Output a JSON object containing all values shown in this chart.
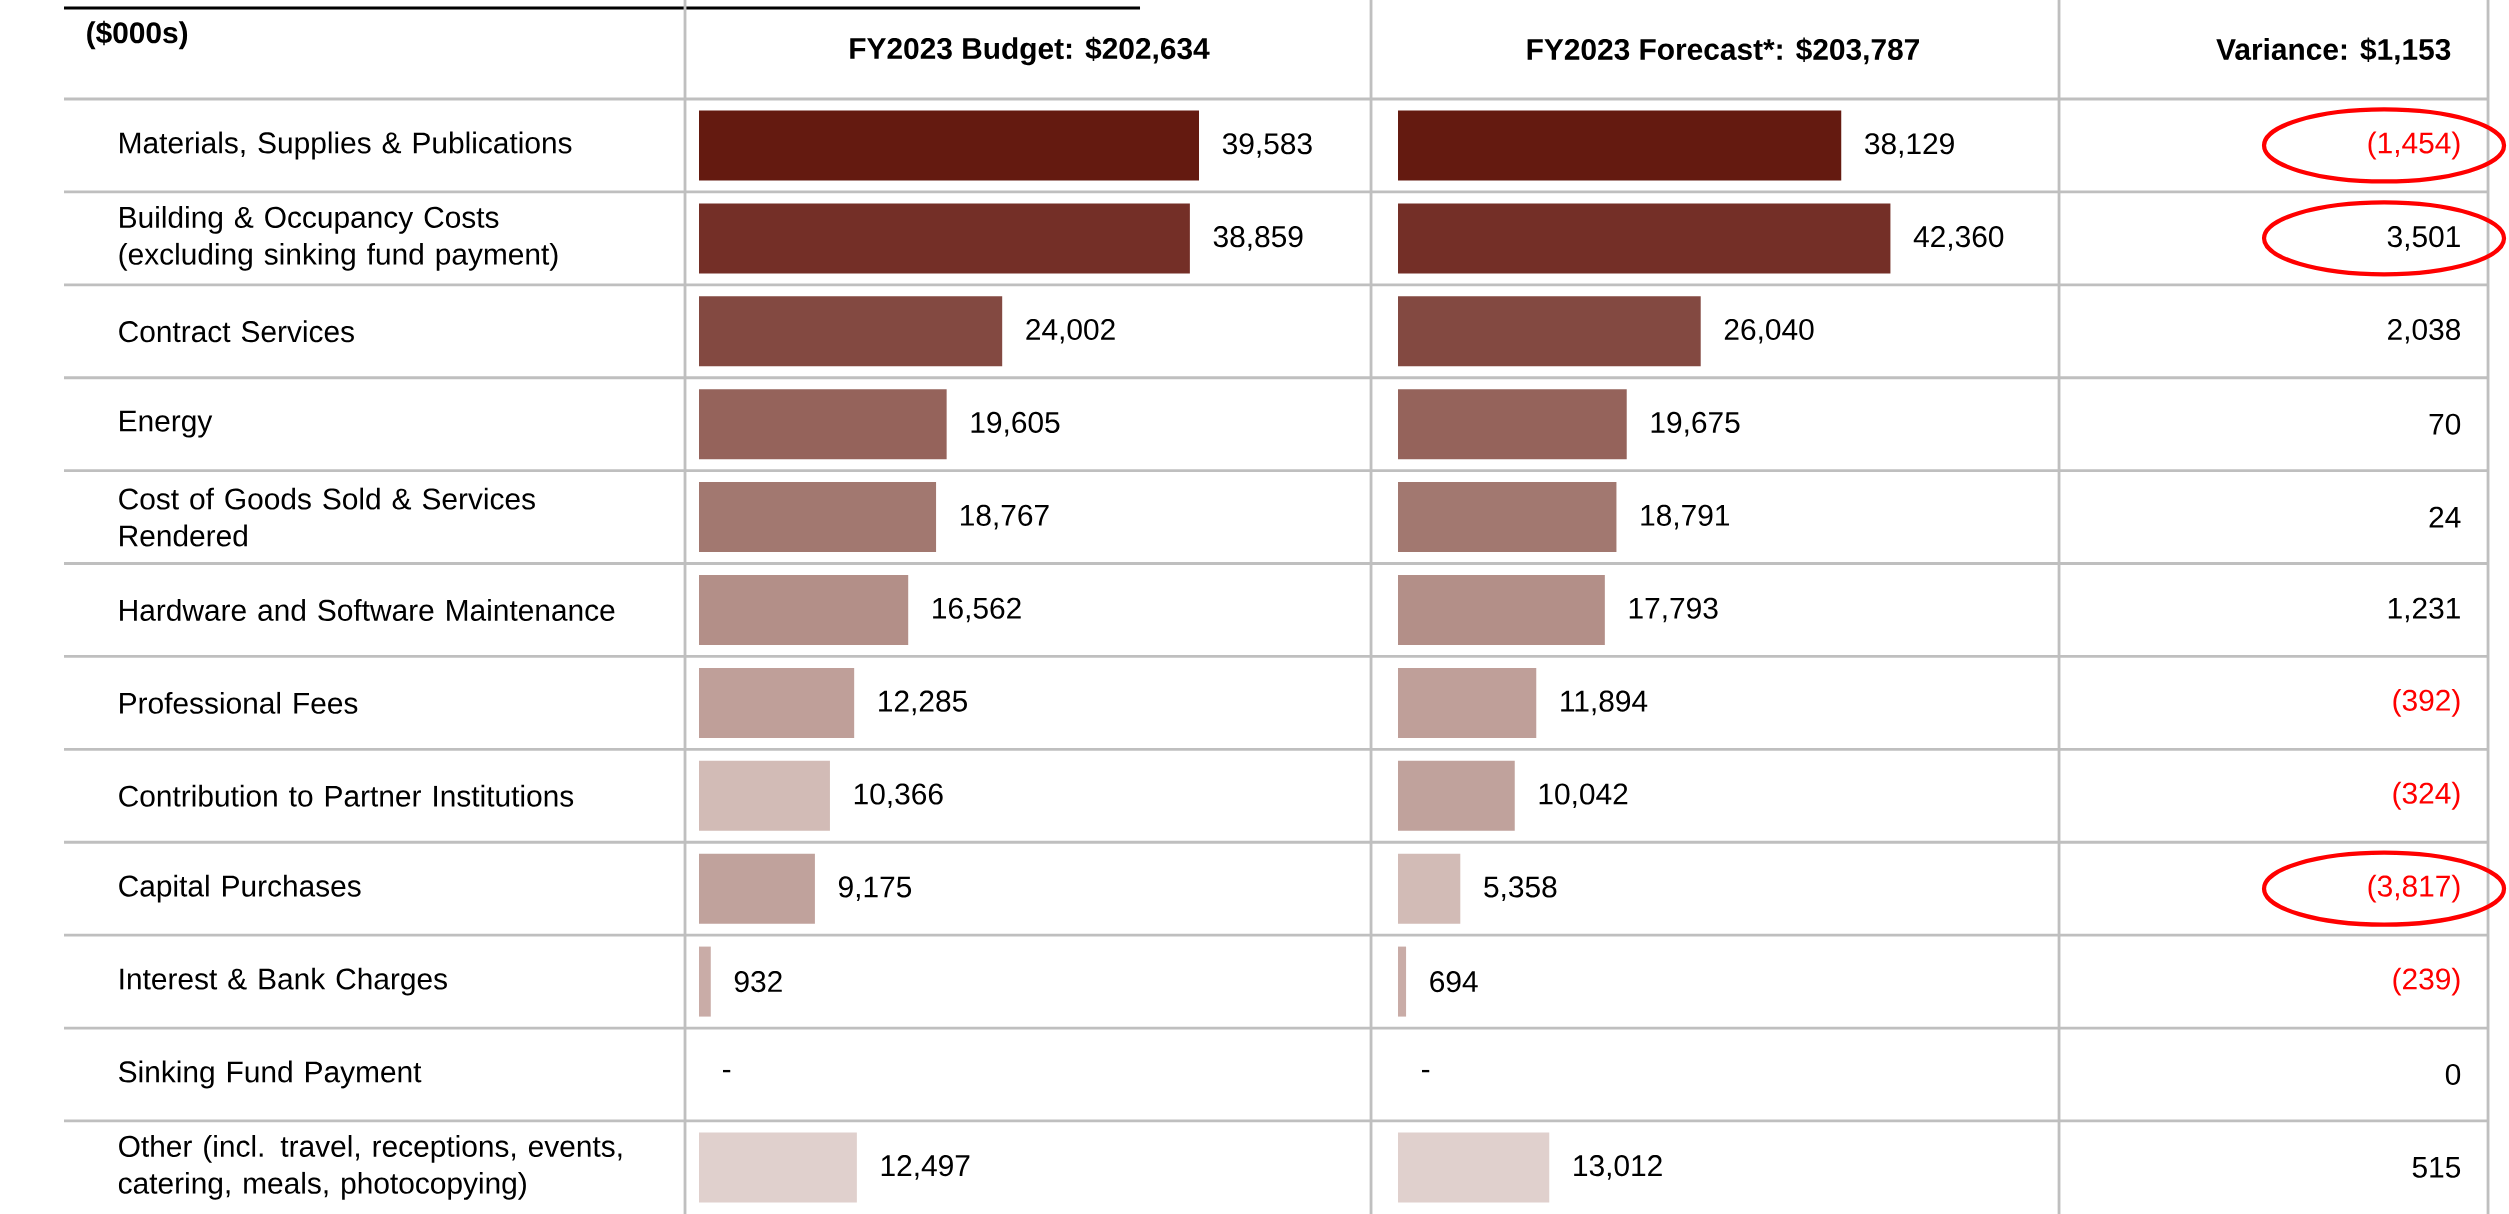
{
  "chart_data": [
    {
      "type": "bar",
      "orientation": "horizontal",
      "title": "FY2023 Budget: $202,634",
      "ylabel": "($000s)",
      "categories": [
        "Materials, Supplies & Publications",
        "Building & Occupancy Costs (excluding sinking fund payment)",
        "Contract Services",
        "Energy",
        "Cost of Goods Sold & Services Rendered",
        "Hardware and Software Maintenance",
        "Professional Fees",
        "Contribution to Partner Institutions",
        "Capital Purchases",
        "Interest & Bank Charges",
        "Sinking Fund Payment",
        "Other (incl. travel, receptions, events, catering, meals, photocopying)"
      ],
      "values": [
        39583,
        38859,
        24002,
        19605,
        18767,
        16562,
        12285,
        10366,
        9175,
        932,
        0,
        12497
      ],
      "value_labels": [
        "39,583",
        "38,859",
        "24,002",
        "19,605",
        "18,767",
        "16,562",
        "12,285",
        "10,366",
        "9,175",
        "932",
        "-",
        "12,497"
      ],
      "colors": [
        "#641a10",
        "#742f27",
        "#834941",
        "#95635b",
        "#a27870",
        "#b38f88",
        "#bf9f99",
        "#d2bbb6",
        "#c0a29c",
        "#c9aca7",
        "#c9aca7",
        "#e0d0cd"
      ]
    },
    {
      "type": "bar",
      "orientation": "horizontal",
      "title": "FY2023 Forecast*: $203,787",
      "categories": [
        null,
        null,
        null,
        null,
        null,
        null,
        null,
        null,
        null,
        null,
        null,
        null
      ],
      "values": [
        38129,
        42360,
        26040,
        19675,
        18791,
        17793,
        11894,
        10042,
        5358,
        694,
        0,
        13012
      ],
      "value_labels": [
        "38,129",
        "42,360",
        "26,040",
        "19,675",
        "18,791",
        "17,793",
        "11,894",
        "10,042",
        "5,358",
        "694",
        "-",
        "13,012"
      ],
      "colors": [
        "#641a10",
        "#742f27",
        "#834941",
        "#95635b",
        "#a27870",
        "#b38f88",
        "#bf9f99",
        "#c0a29c",
        "#d2bbb6",
        "#c9aca7",
        "#c9aca7",
        "#e0d0cd"
      ]
    },
    {
      "type": "other",
      "title": "Variance: $1,153",
      "values": [
        -1454,
        3501,
        2038,
        70,
        24,
        1231,
        -392,
        -324,
        -3817,
        -239,
        0,
        515
      ],
      "value_labels": [
        "(1,454)",
        "3,501",
        "2,038",
        "70",
        "24",
        "1,231",
        "(392)",
        "(324)",
        "(3,817)",
        "(239)",
        "0",
        "515"
      ],
      "colors": [
        "#ff0000",
        "#000000",
        "#000000",
        "#000000",
        "#000000",
        "#000000",
        "#ff0000",
        "#ff0000",
        "#ff0000",
        "#ff0000",
        "#000000",
        "#000000"
      ]
    }
  ]
}
